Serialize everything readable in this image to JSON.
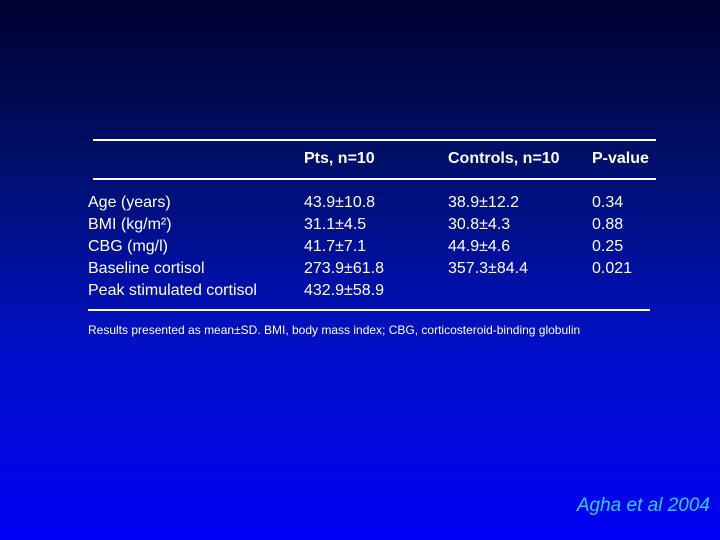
{
  "table": {
    "columns": [
      "Pts, n=10",
      "Controls, n=10",
      "P-value"
    ],
    "rows": [
      {
        "label": "Age (years)",
        "cells": [
          "43.9±10.8",
          "38.9±12.2",
          "0.34"
        ]
      },
      {
        "label": "BMI (kg/m²)",
        "cells": [
          "31.1±4.5",
          "30.8±4.3",
          "0.88"
        ]
      },
      {
        "label": "CBG (mg/l)",
        "cells": [
          "41.7±7.1",
          "44.9±4.6",
          "0.25"
        ]
      },
      {
        "label": "Baseline cortisol",
        "cells": [
          "273.9±61.8",
          "357.3±84.4",
          "0.021"
        ]
      },
      {
        "label": "Peak stimulated cortisol",
        "cells": [
          "432.9±58.9"
        ]
      }
    ],
    "footnote": "Results presented as mean±SD. BMI, body mass index; CBG, corticosteroid-binding globulin"
  },
  "citation": "Agha et al 2004"
}
